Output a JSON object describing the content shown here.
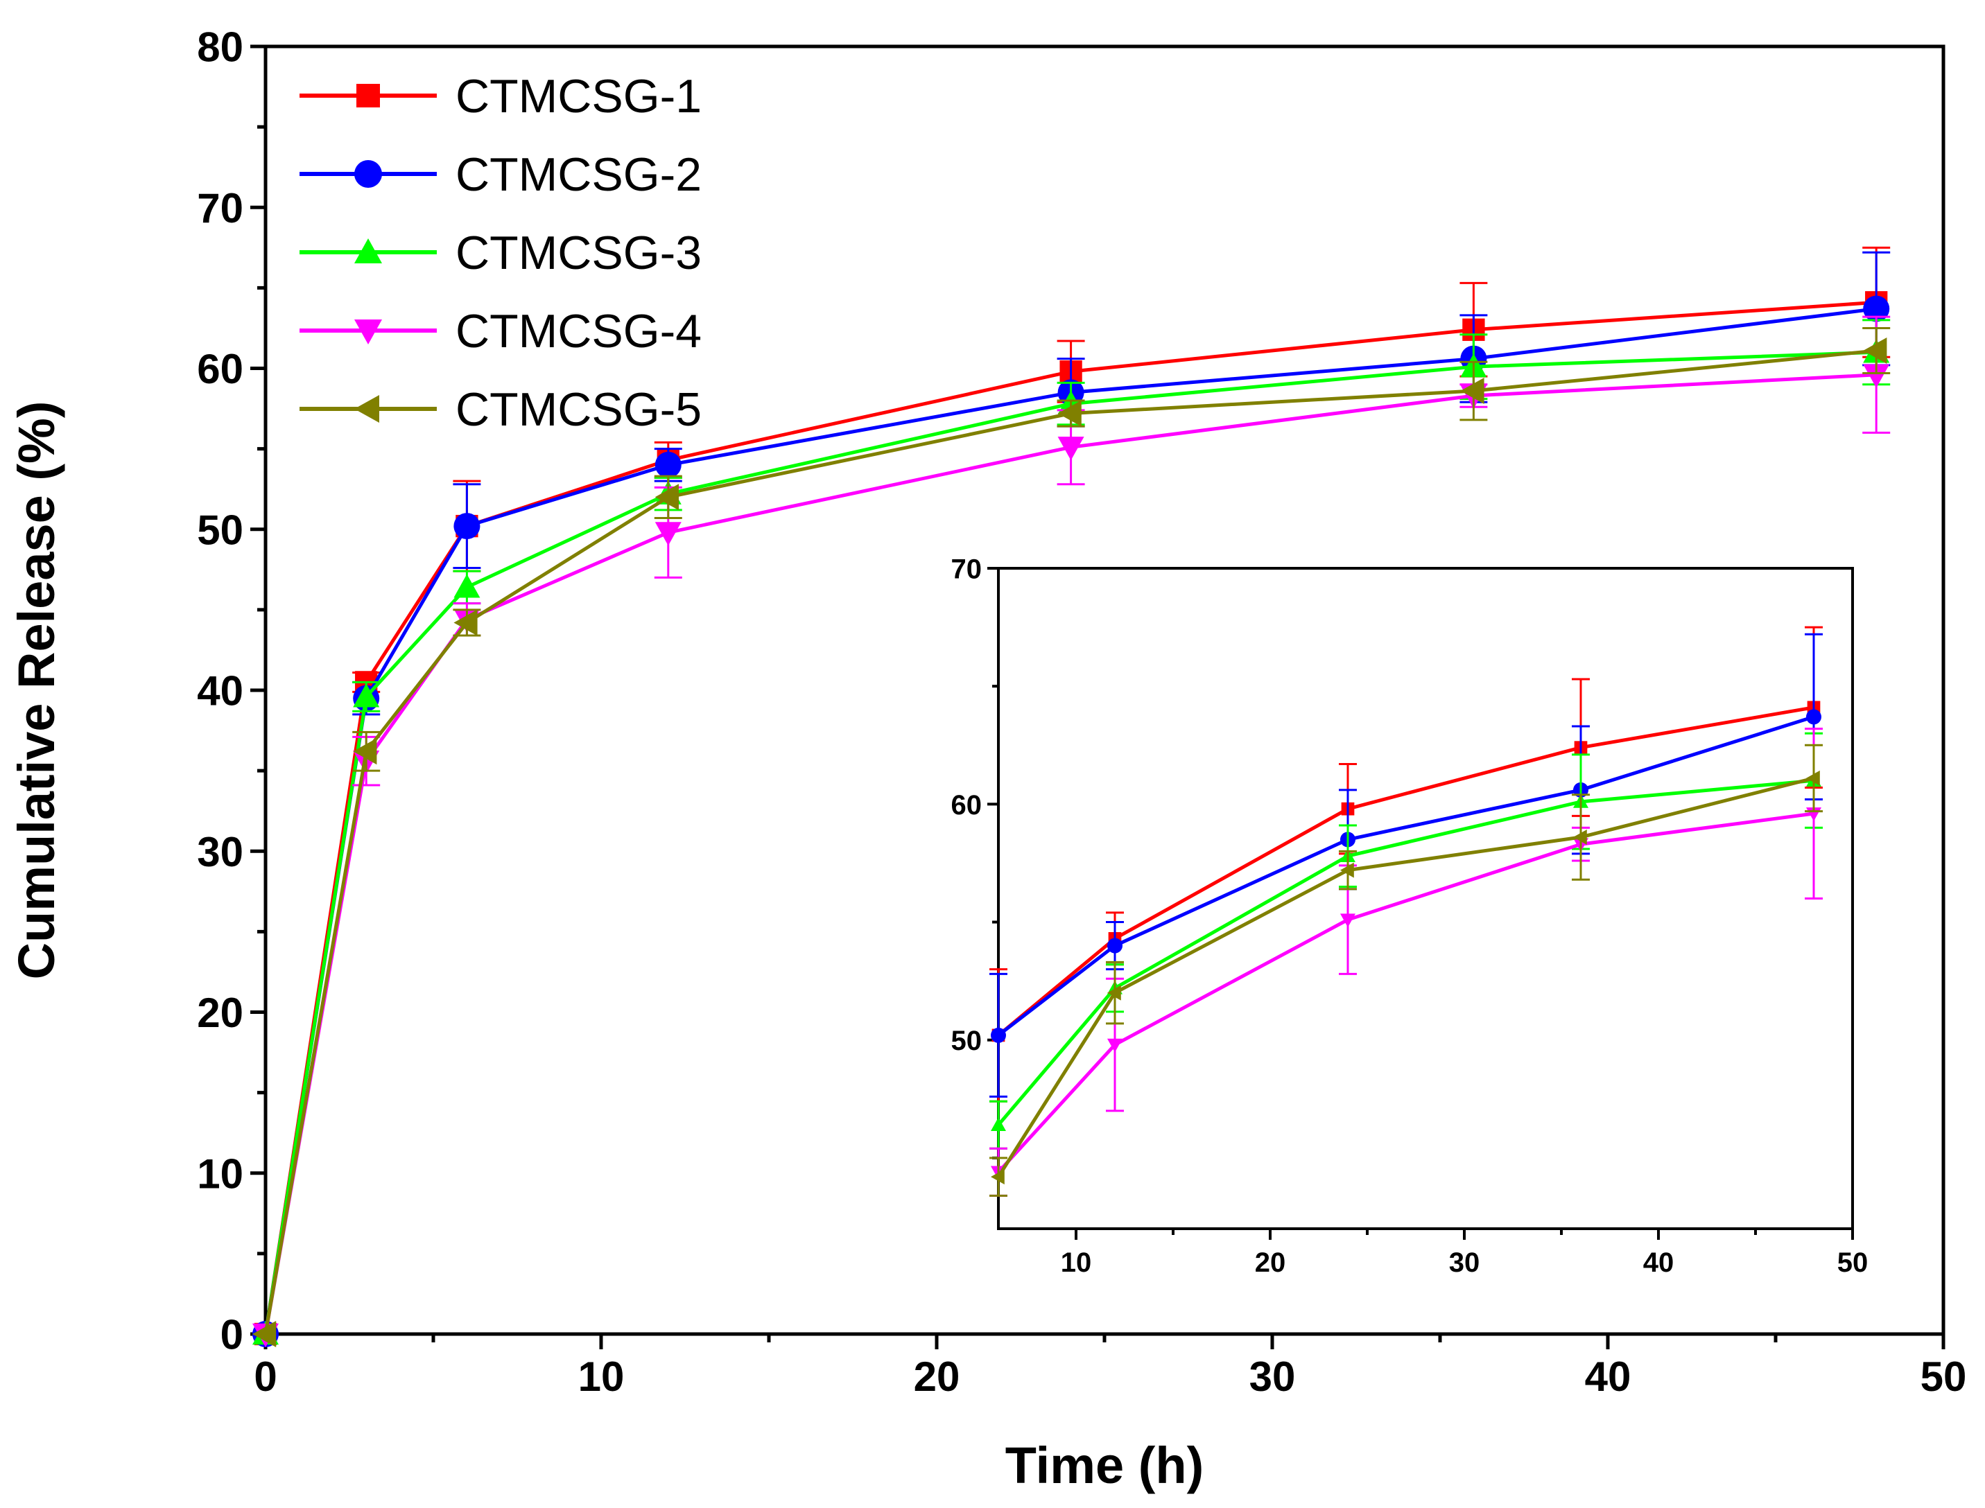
{
  "chart_data": [
    {
      "type": "line",
      "panel": "main",
      "xlabel": "Time (h)",
      "ylabel": "Cumulative Release (%)",
      "xlim": [
        0,
        50
      ],
      "ylim": [
        0,
        80
      ],
      "xticks": [
        "0",
        "10",
        "20",
        "30",
        "40",
        "50"
      ],
      "yticks": [
        "0",
        "10",
        "20",
        "30",
        "40",
        "50",
        "60",
        "70",
        "80"
      ],
      "legend": "top-left",
      "x": [
        0,
        3,
        6,
        12,
        24,
        36,
        48
      ],
      "series": [
        {
          "name": "CTMCSG-1",
          "marker": "square",
          "color": "#ff0000",
          "values": [
            0,
            40.5,
            50.2,
            54.3,
            59.8,
            62.4,
            64.1
          ],
          "errors": [
            0,
            0.6,
            2.8,
            1.1,
            1.9,
            2.9,
            3.4
          ]
        },
        {
          "name": "CTMCSG-2",
          "marker": "circle",
          "color": "#0000ff",
          "values": [
            0,
            39.5,
            50.2,
            54.0,
            58.5,
            60.6,
            63.7
          ],
          "errors": [
            0,
            1.0,
            2.6,
            1.0,
            2.1,
            2.7,
            3.5
          ]
        },
        {
          "name": "CTMCSG-3",
          "marker": "triangle-up",
          "color": "#00ff00",
          "values": [
            0,
            39.6,
            46.4,
            52.2,
            57.8,
            60.1,
            61.0
          ],
          "errors": [
            0,
            0.9,
            1.0,
            1.0,
            1.3,
            2.0,
            2.0
          ]
        },
        {
          "name": "CTMCSG-4",
          "marker": "triangle-down",
          "color": "#ff00ff",
          "values": [
            0,
            35.6,
            44.4,
            49.8,
            55.1,
            58.3,
            59.6
          ],
          "errors": [
            0,
            1.5,
            1.0,
            2.8,
            2.3,
            0.7,
            3.6
          ]
        },
        {
          "name": "CTMCSG-5",
          "marker": "triangle-left",
          "color": "#808000",
          "values": [
            0,
            36.2,
            44.2,
            52.0,
            57.2,
            58.6,
            61.1
          ],
          "errors": [
            0,
            1.2,
            0.8,
            1.3,
            0.8,
            1.8,
            1.4
          ]
        }
      ]
    },
    {
      "type": "line",
      "panel": "inset",
      "xlim": [
        6,
        50
      ],
      "ylim": [
        42,
        70
      ],
      "xticks": [
        "10",
        "20",
        "30",
        "40",
        "50"
      ],
      "yticks": [
        "50",
        "60",
        "70"
      ],
      "x": [
        6,
        12,
        24,
        36,
        48
      ],
      "series": [
        {
          "name": "CTMCSG-1",
          "marker": "square",
          "color": "#ff0000",
          "values": [
            50.2,
            54.3,
            59.8,
            62.4,
            64.1
          ],
          "errors": [
            2.8,
            1.1,
            1.9,
            2.9,
            3.4
          ]
        },
        {
          "name": "CTMCSG-2",
          "marker": "circle",
          "color": "#0000ff",
          "values": [
            50.2,
            54.0,
            58.5,
            60.6,
            63.7
          ],
          "errors": [
            2.6,
            1.0,
            2.1,
            2.7,
            3.5
          ]
        },
        {
          "name": "CTMCSG-3",
          "marker": "triangle-up",
          "color": "#00ff00",
          "values": [
            46.4,
            52.2,
            57.8,
            60.1,
            61.0
          ],
          "errors": [
            1.0,
            1.0,
            1.3,
            2.0,
            2.0
          ]
        },
        {
          "name": "CTMCSG-4",
          "marker": "triangle-down",
          "color": "#ff00ff",
          "values": [
            44.4,
            49.8,
            55.1,
            58.3,
            59.6
          ],
          "errors": [
            1.0,
            2.8,
            2.3,
            0.7,
            3.6
          ]
        },
        {
          "name": "CTMCSG-5",
          "marker": "triangle-left",
          "color": "#808000",
          "values": [
            44.2,
            52.0,
            57.2,
            58.6,
            61.1
          ],
          "errors": [
            0.8,
            1.3,
            0.8,
            1.8,
            1.4
          ]
        }
      ]
    }
  ]
}
